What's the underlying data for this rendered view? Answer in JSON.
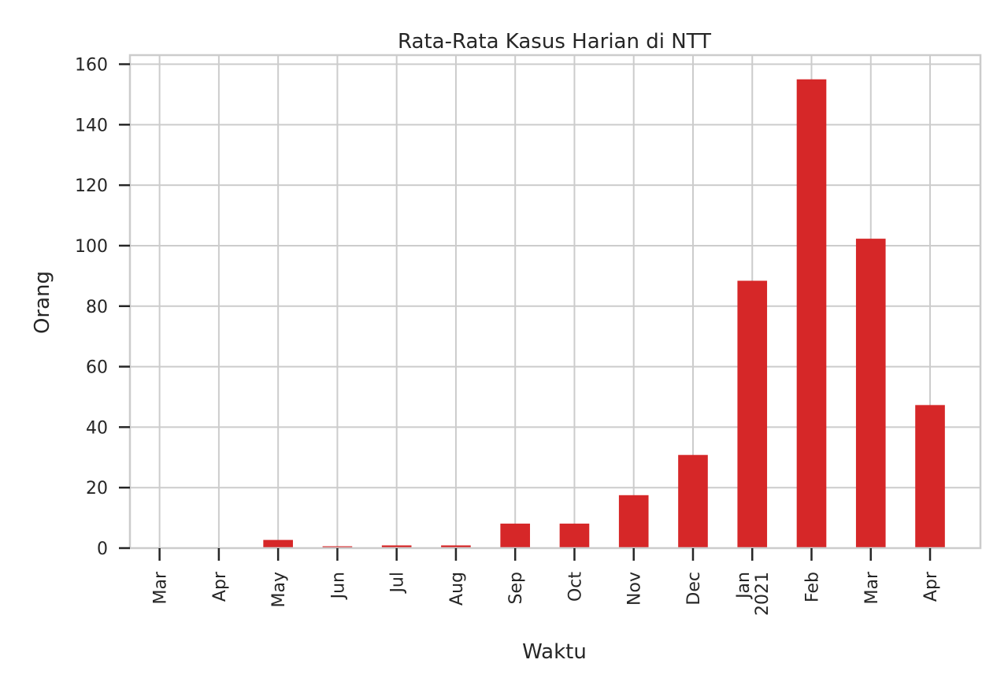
{
  "chart_data": {
    "type": "bar",
    "title": "Rata-Rata Kasus Harian di NTT",
    "xlabel": "Waktu",
    "ylabel": "Orang",
    "categories": [
      "2020-03",
      "2020-04",
      "2020-05",
      "2020-06",
      "2020-07",
      "2020-08",
      "2020-09",
      "2020-10",
      "2020-11",
      "2020-12",
      "2021-01",
      "2021-02",
      "2021-03",
      "2021-04"
    ],
    "tick_labels": [
      [
        "Mar"
      ],
      [
        "Apr"
      ],
      [
        "May"
      ],
      [
        "Jun"
      ],
      [
        "Jul"
      ],
      [
        "Aug"
      ],
      [
        "Sep"
      ],
      [
        "Oct"
      ],
      [
        "Nov"
      ],
      [
        "Dec"
      ],
      [
        "Jan",
        "2021"
      ],
      [
        "Feb"
      ],
      [
        "Mar"
      ],
      [
        "Apr"
      ]
    ],
    "values": [
      0.0,
      0.0,
      2.7,
      0.6,
      0.9,
      0.9,
      8.1,
      8.1,
      17.5,
      30.8,
      88.4,
      155.0,
      102.3,
      47.3
    ],
    "ylim": [
      0,
      163
    ],
    "yticks": [
      0,
      20,
      40,
      60,
      80,
      100,
      120,
      140,
      160
    ],
    "grid": true,
    "bar_color": "#d62728",
    "grid_color": "#cccccc",
    "text_color": "#262626"
  }
}
